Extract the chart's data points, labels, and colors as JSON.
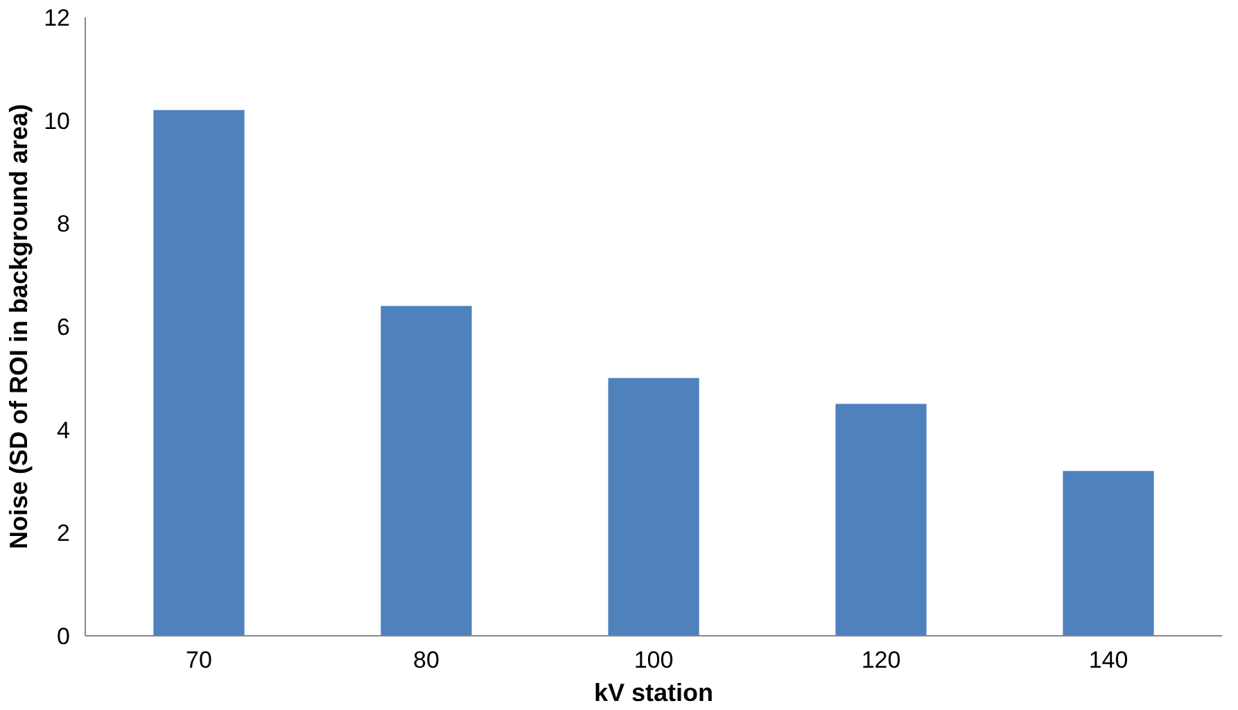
{
  "chart_data": {
    "type": "bar",
    "xlabel": "kV station",
    "ylabel": "Noise (SD of ROI in background area)",
    "categories": [
      "70",
      "80",
      "100",
      "120",
      "140"
    ],
    "values": [
      10.2,
      6.4,
      5.0,
      4.5,
      3.2
    ],
    "color": "#4f81bd",
    "ylim": [
      0,
      12
    ],
    "yticks": [
      0,
      2,
      4,
      6,
      8,
      10,
      12
    ],
    "grid": false
  }
}
